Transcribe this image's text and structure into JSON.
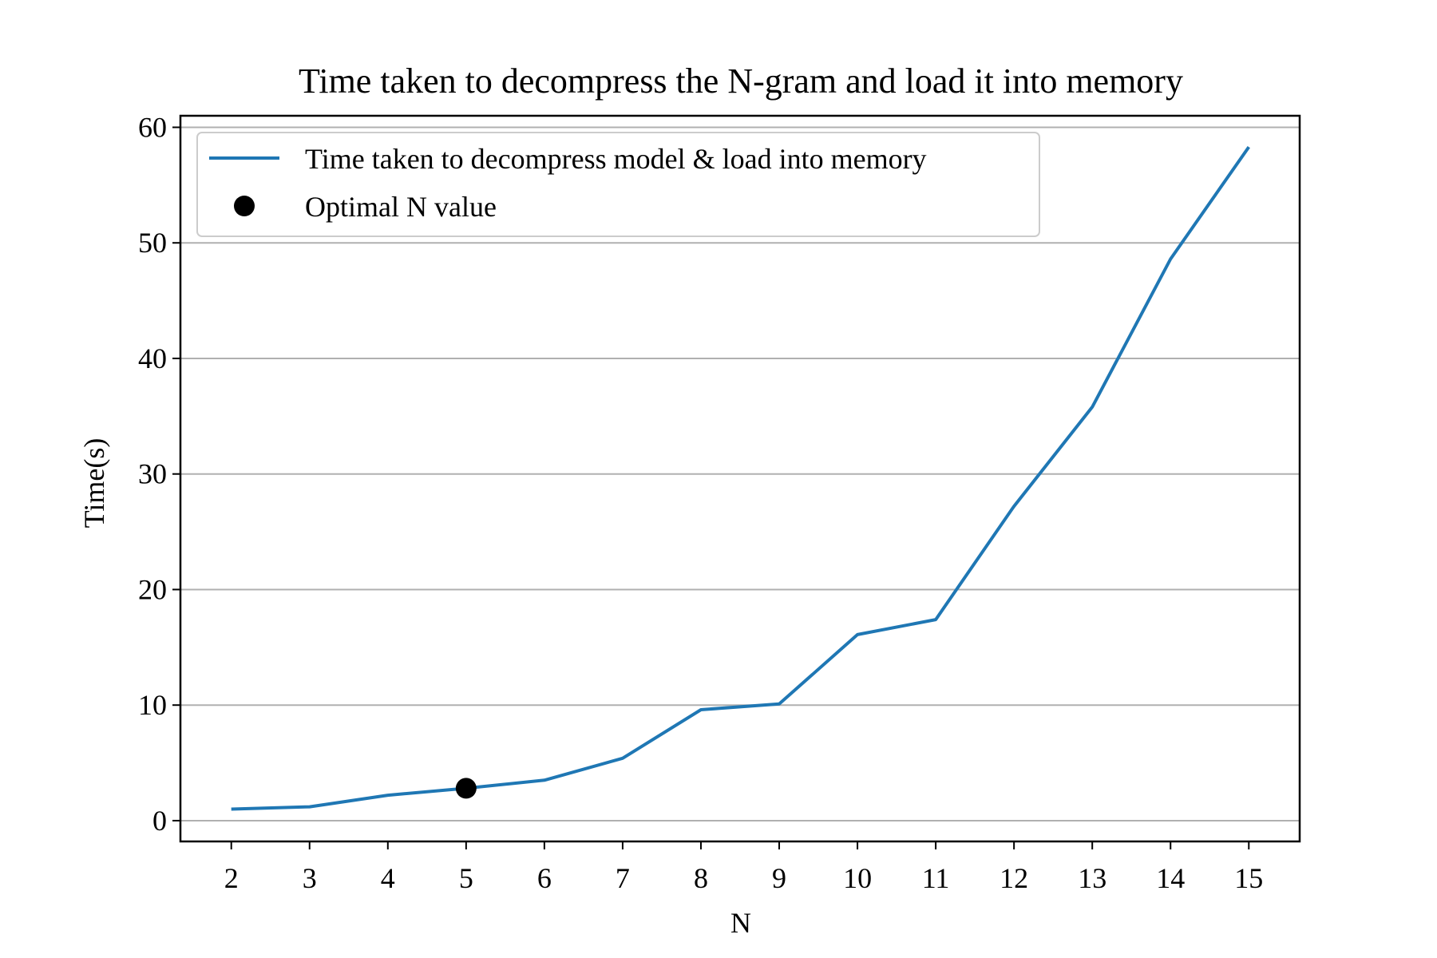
{
  "chart_data": {
    "type": "line",
    "title": "Time taken to decompress the N-gram and load it into memory",
    "xlabel": "N",
    "ylabel": "Time(s)",
    "x": [
      2,
      3,
      4,
      5,
      6,
      7,
      8,
      9,
      10,
      11,
      12,
      13,
      14,
      15
    ],
    "x_ticks": [
      "2",
      "3",
      "4",
      "5",
      "6",
      "7",
      "8",
      "9",
      "10",
      "11",
      "12",
      "13",
      "14",
      "15"
    ],
    "y_ticks": [
      "0",
      "10",
      "20",
      "30",
      "40",
      "50",
      "60"
    ],
    "xlim": [
      1.35,
      15.65
    ],
    "ylim": [
      -1.8,
      61
    ],
    "grid": "y-major",
    "legend_location": "upper-left",
    "series": [
      {
        "name": "Time taken to decompress model & load into memory",
        "kind": "line",
        "color": "#1f77b4",
        "values": [
          1.0,
          1.2,
          2.2,
          2.8,
          3.5,
          5.4,
          9.6,
          10.1,
          16.1,
          17.4,
          27.2,
          35.8,
          48.6,
          58.3
        ]
      },
      {
        "name": "Optimal N value",
        "kind": "point",
        "color": "#000000",
        "x": 5,
        "y": 2.8
      }
    ]
  }
}
